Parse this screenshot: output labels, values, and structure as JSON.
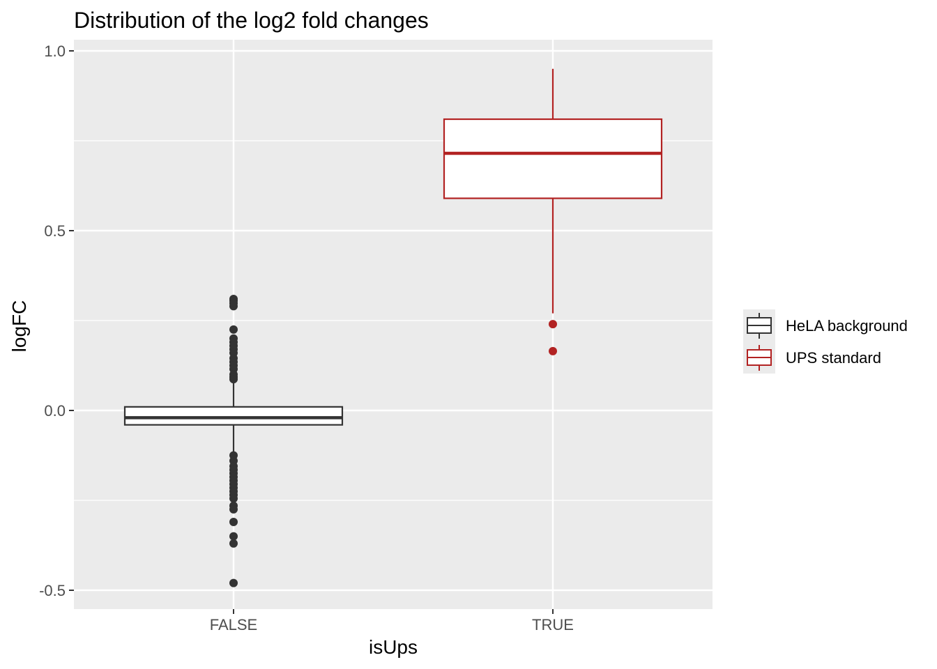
{
  "chart_data": {
    "type": "boxplot",
    "title": "Distribution of the log2 fold changes",
    "xlabel": "isUps",
    "ylabel": "logFC",
    "categories": [
      "FALSE",
      "TRUE"
    ],
    "ylim": [
      -0.55,
      1.0
    ],
    "yticks": [
      "-0.5",
      "0.0",
      "0.5",
      "1.0"
    ],
    "grid": true,
    "legend_position": "right",
    "series": [
      {
        "name": "HeLA background",
        "category": "FALSE",
        "color": "#333333",
        "whisker_low": -0.13,
        "q1": -0.04,
        "median": -0.02,
        "q3": 0.01,
        "whisker_high": 0.09,
        "outliers": [
          0.31,
          0.305,
          0.298,
          0.29,
          0.225,
          0.2,
          0.19,
          0.18,
          0.17,
          0.16,
          0.145,
          0.135,
          0.125,
          0.115,
          0.1,
          0.093,
          0.087,
          -0.125,
          -0.14,
          -0.155,
          -0.165,
          -0.175,
          -0.185,
          -0.195,
          -0.205,
          -0.215,
          -0.225,
          -0.235,
          -0.245,
          -0.265,
          -0.275,
          -0.31,
          -0.35,
          -0.37,
          -0.48
        ]
      },
      {
        "name": "UPS standard",
        "category": "TRUE",
        "color": "#b22222",
        "whisker_low": 0.27,
        "q1": 0.59,
        "median": 0.715,
        "q3": 0.81,
        "whisker_high": 0.95,
        "outliers": [
          0.24,
          0.165
        ]
      }
    ]
  }
}
